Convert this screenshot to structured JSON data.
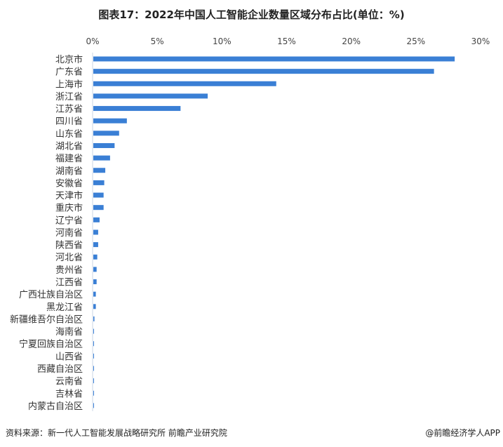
{
  "chart_data": {
    "type": "bar",
    "orientation": "horizontal",
    "title": "图表17：2022年中国人工智能企业数量区域分布占比(单位：%)",
    "xlim": [
      0,
      30
    ],
    "xticks": [
      "0%",
      "5%",
      "10%",
      "15%",
      "20%",
      "25%",
      "30%"
    ],
    "xaxis_position": "top",
    "grid": false,
    "bar_color": "#3a7fd5",
    "categories": [
      "北京市",
      "广东省",
      "上海市",
      "浙江省",
      "江苏省",
      "四川省",
      "山东省",
      "湖北省",
      "福建省",
      "湖南省",
      "安徽省",
      "天津市",
      "重庆市",
      "辽宁省",
      "河南省",
      "陕西省",
      "河北省",
      "贵州省",
      "江西省",
      "广西壮族自治区",
      "黑龙江省",
      "新疆维吾尔自治区",
      "海南省",
      "宁夏回族自治区",
      "山西省",
      "西藏自治区",
      "云南省",
      "吉林省",
      "内蒙古自治区"
    ],
    "values": [
      28.0,
      26.4,
      14.2,
      8.9,
      6.8,
      2.65,
      2.05,
      1.7,
      1.35,
      0.98,
      0.9,
      0.85,
      0.85,
      0.54,
      0.43,
      0.43,
      0.36,
      0.31,
      0.31,
      0.25,
      0.25,
      0.14,
      0.09,
      0.09,
      0.05,
      0.04,
      0.04,
      0.04,
      0.04
    ]
  },
  "footer": {
    "source": "资料来源：新一代人工智能发展战略研究所 前瞻产业研究院",
    "credit": "@前瞻经济学人APP"
  }
}
